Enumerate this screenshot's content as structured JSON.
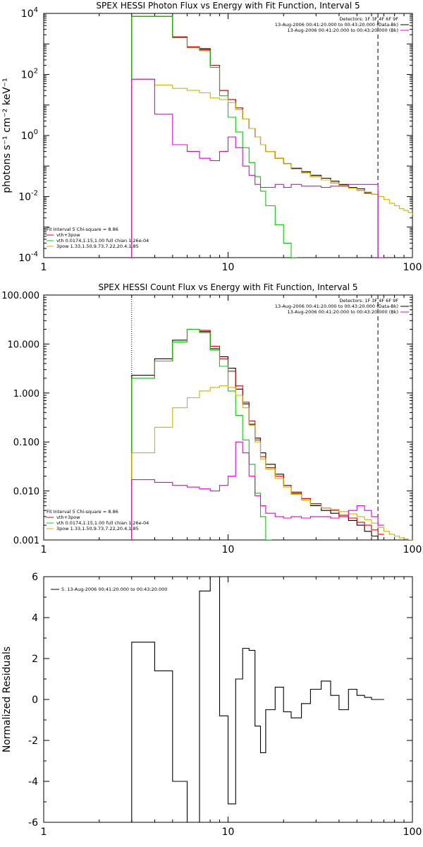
{
  "chart_data": [
    {
      "type": "line",
      "title": "SPEX HESSI Photon Flux vs Energy with Fit Function, Interval 5",
      "ylabel": "photons s⁻¹ cm⁻² keV⁻¹",
      "xlabel": "",
      "xscale": "log",
      "yscale": "log",
      "xlim": [
        1,
        100
      ],
      "ylim": [
        0.0001,
        10000
      ],
      "xtick_labels": [
        "1",
        "10",
        "100"
      ],
      "ytick_labels": [
        {
          "base": "10",
          "exp": "-4"
        },
        {
          "base": "10",
          "exp": "-2"
        },
        {
          "base": "10",
          "exp": "0"
        },
        {
          "base": "10",
          "exp": "2"
        },
        {
          "base": "10",
          "exp": "4"
        }
      ],
      "legend_top": [
        {
          "text": "Detectors: 1F 3F 4F 6F 9F",
          "color": "#000000"
        },
        {
          "text": "13-Aug-2006 00:41:20.000 to 00:43:20.000 (Data-Bk)",
          "color": "#000000"
        },
        {
          "text": "13-Aug-2006 00:41:20.000 to 00:43:20.000 (Bk)",
          "color": "#e000e0"
        }
      ],
      "legend_bottom": [
        {
          "text": "Fit Interval 5   Chi-square = 8.86",
          "color": "#000000"
        },
        {
          "text": "vth+3pow",
          "color": "#e00000"
        },
        {
          "text": "vth 0.0174,1.15,1.00  full chian 1.26e-04",
          "color": "#00d000"
        },
        {
          "text": "3pow 1.33,1.50,9.73,7.22,20.4,1.85",
          "color": "#d4b000"
        }
      ],
      "vlines": [
        {
          "x": 3.0,
          "style": "dotted",
          "color": "#000000"
        },
        {
          "x": 65.0,
          "style": "dashed",
          "color": "#000000"
        }
      ],
      "series": [
        {
          "color": "#000000",
          "x": [
            3,
            4,
            5,
            6,
            7,
            8,
            9,
            10,
            11,
            12,
            13,
            14,
            15,
            16,
            18,
            20,
            22,
            25,
            28,
            32,
            36,
            40,
            45,
            50,
            55,
            60,
            65
          ],
          "y": [
            8000,
            8000,
            1700,
            800,
            700,
            200,
            30,
            15,
            8,
            3.5,
            1.7,
            0.9,
            0.5,
            0.3,
            0.18,
            0.12,
            0.085,
            0.065,
            0.05,
            0.04,
            0.032,
            0.025,
            0.02,
            0.018,
            0.013,
            0.012,
            0.0001
          ]
        },
        {
          "color": "#e00000",
          "x": [
            3,
            4,
            5,
            6,
            7,
            8,
            9,
            10,
            11,
            12,
            13,
            14,
            15,
            16,
            18,
            20,
            22,
            25,
            28,
            32,
            36,
            40,
            45,
            50,
            55,
            60,
            65
          ],
          "y": [
            8000,
            8000,
            1700,
            800,
            650,
            200,
            30,
            15,
            8,
            3.5,
            1.7,
            0.9,
            0.5,
            0.3,
            0.18,
            0.12,
            0.08,
            0.06,
            0.045,
            0.035,
            0.028,
            0.023,
            0.019,
            0.016,
            0.014,
            0.012,
            0.01
          ]
        },
        {
          "color": "#00d000",
          "x": [
            3,
            4,
            5,
            6,
            7,
            8,
            9,
            10,
            11,
            12,
            13,
            14,
            15,
            16,
            18,
            20,
            22
          ],
          "y": [
            8000,
            8000,
            1600,
            750,
            600,
            170,
            20,
            4,
            1.3,
            0.4,
            0.13,
            0.045,
            0.015,
            0.005,
            0.0012,
            0.0003,
            0.0001
          ]
        },
        {
          "color": "#d4b000",
          "x": [
            3,
            4,
            5,
            6,
            7,
            8,
            9,
            10,
            11,
            12,
            13,
            14,
            15,
            16,
            18,
            20,
            22,
            25,
            28,
            32,
            36,
            40,
            45,
            50,
            55,
            60,
            65,
            70,
            75,
            80,
            85,
            90,
            95,
            100
          ],
          "y": [
            70,
            45,
            35,
            30,
            25,
            17,
            15,
            12,
            7,
            3.5,
            1.7,
            0.9,
            0.5,
            0.3,
            0.18,
            0.12,
            0.08,
            0.06,
            0.045,
            0.035,
            0.028,
            0.023,
            0.019,
            0.016,
            0.014,
            0.012,
            0.01,
            0.008,
            0.006,
            0.005,
            0.004,
            0.0035,
            0.003,
            0.0025
          ]
        },
        {
          "color": "#e000e0",
          "x": [
            3,
            4,
            5,
            6,
            7,
            8,
            9,
            10,
            11,
            12,
            13,
            14,
            15,
            16,
            18,
            20,
            22,
            25,
            28,
            32,
            36,
            40,
            45,
            50,
            55,
            60,
            65
          ],
          "y": [
            70,
            5,
            0.5,
            0.3,
            0.18,
            0.15,
            0.3,
            0.9,
            0.4,
            0.1,
            0.05,
            0.025,
            0.02,
            0.02,
            0.025,
            0.02,
            0.025,
            0.022,
            0.022,
            0.02,
            0.022,
            0.022,
            0.025,
            0.025,
            0.025,
            0.025,
            0.0001
          ]
        }
      ]
    },
    {
      "type": "line",
      "title": "SPEX HESSI Count Flux vs Energy with Fit Function, Interval 5",
      "ylabel": "",
      "xlabel": "",
      "xscale": "log",
      "yscale": "log",
      "xlim": [
        1,
        100
      ],
      "ylim": [
        0.001,
        100
      ],
      "xtick_labels": [
        "1",
        "10",
        "100"
      ],
      "ytick_labels": [
        "0.001",
        "0.010",
        "0.100",
        "1.000",
        "10.000",
        "100.000"
      ],
      "legend_top": [
        {
          "text": "Detectors: 1F 3F 4F 6F 9F",
          "color": "#000000"
        },
        {
          "text": "13-Aug-2006 00:41:20.000 to 00:43:20.000 (Data-Bk)",
          "color": "#000000"
        },
        {
          "text": "13-Aug-2006 00:41:20.000 to 00:43:20.000 (Bk)",
          "color": "#e000e0"
        }
      ],
      "legend_bottom": [
        {
          "text": "Fit Interval 5   Chi-square = 8.86",
          "color": "#000000"
        },
        {
          "text": "vth+3pow",
          "color": "#e00000"
        },
        {
          "text": "vth 0.0174,1.15,1.00  full chian 1.26e-04",
          "color": "#00d000"
        },
        {
          "text": "3pow 1.33,1.50,9.73,7.22,20.4,1.85",
          "color": "#d4b000"
        }
      ],
      "vlines": [
        {
          "x": 3.0,
          "style": "dotted",
          "color": "#000000"
        },
        {
          "x": 65.0,
          "style": "dashed",
          "color": "#000000"
        }
      ],
      "series": [
        {
          "color": "#000000",
          "x": [
            3,
            4,
            5,
            6,
            7,
            8,
            9,
            10,
            11,
            12,
            13,
            14,
            15,
            16,
            18,
            20,
            22,
            25,
            28,
            32,
            36,
            40,
            45,
            50,
            55,
            60,
            65
          ],
          "y": [
            2.3,
            5,
            12,
            20,
            18,
            8,
            5.5,
            3.2,
            1.2,
            0.6,
            0.23,
            0.12,
            0.06,
            0.035,
            0.022,
            0.013,
            0.009,
            0.007,
            0.005,
            0.004,
            0.0035,
            0.003,
            0.0025,
            0.002,
            0.0015,
            0.0012,
            0.001
          ]
        },
        {
          "color": "#e00000",
          "x": [
            3,
            4,
            5,
            6,
            7,
            8,
            9,
            10,
            11,
            12,
            13,
            14,
            15,
            16,
            18,
            20,
            22,
            25,
            28,
            32,
            36,
            40,
            45,
            50,
            55,
            60,
            65
          ],
          "y": [
            2.0,
            4.5,
            11,
            20,
            19,
            9,
            5,
            2.8,
            1.4,
            0.65,
            0.27,
            0.11,
            0.05,
            0.03,
            0.02,
            0.013,
            0.0095,
            0.007,
            0.0055,
            0.0045,
            0.004,
            0.0032,
            0.0028,
            0.0023,
            0.002,
            0.0016,
            0.0013
          ]
        },
        {
          "color": "#00d000",
          "x": [
            3,
            4,
            5,
            6,
            7,
            8,
            9,
            10,
            11,
            12,
            13,
            14,
            15,
            16
          ],
          "y": [
            2.0,
            4.5,
            11,
            20,
            17,
            7.5,
            3.5,
            1.1,
            0.35,
            0.11,
            0.035,
            0.009,
            0.003,
            0.001
          ]
        },
        {
          "color": "#d4b000",
          "x": [
            3,
            4,
            5,
            6,
            7,
            8,
            9,
            10,
            11,
            12,
            13,
            14,
            15,
            16,
            18,
            20,
            22,
            25,
            28,
            32,
            36,
            40,
            45,
            50,
            55,
            60,
            65,
            70,
            75,
            80,
            85,
            90,
            95,
            100
          ],
          "y": [
            0.06,
            0.2,
            0.5,
            0.8,
            1.1,
            1.3,
            1.4,
            1.3,
            0.9,
            0.5,
            0.22,
            0.1,
            0.045,
            0.028,
            0.018,
            0.012,
            0.0085,
            0.0065,
            0.0052,
            0.0045,
            0.0042,
            0.0038,
            0.0034,
            0.003,
            0.0026,
            0.0022,
            0.0018,
            0.0015,
            0.0013,
            0.0012,
            0.0011,
            0.00105,
            0.001,
            0.001
          ]
        },
        {
          "color": "#e000e0",
          "x": [
            3,
            4,
            5,
            6,
            7,
            8,
            9,
            10,
            11,
            12,
            13,
            14,
            15,
            16,
            18,
            20,
            22,
            25,
            28,
            32,
            36,
            40,
            45,
            50,
            55,
            60,
            65
          ],
          "y": [
            0.017,
            0.015,
            0.013,
            0.012,
            0.011,
            0.01,
            0.013,
            0.02,
            0.1,
            0.06,
            0.02,
            0.008,
            0.005,
            0.0035,
            0.003,
            0.0028,
            0.003,
            0.0028,
            0.003,
            0.003,
            0.0028,
            0.003,
            0.004,
            0.005,
            0.004,
            0.003,
            0.002
          ]
        }
      ]
    },
    {
      "type": "line",
      "title": "",
      "ylabel": "Normalized Residuals",
      "xlabel": "",
      "xscale": "log",
      "yscale": "linear",
      "xlim": [
        1,
        100
      ],
      "ylim": [
        -6,
        6
      ],
      "xtick_labels": [
        "1",
        "10",
        "100"
      ],
      "ytick_labels": [
        "-6",
        "-4",
        "-2",
        "0",
        "2",
        "4",
        "6"
      ],
      "legend_top": [
        {
          "text": "5. 13-Aug-2006 00:41:20.000 to 00:43:20.000",
          "color": "#000000"
        }
      ],
      "series": [
        {
          "color": "#000000",
          "x": [
            3,
            4,
            5,
            6,
            7,
            8,
            9,
            10,
            11,
            12,
            13,
            14,
            15,
            16,
            18,
            20,
            22,
            25,
            28,
            32,
            36,
            40,
            45,
            50,
            55,
            60,
            65
          ],
          "y": [
            2.8,
            1.4,
            -4,
            -6,
            5.3,
            6,
            -0.8,
            -5.1,
            1,
            2.5,
            2.4,
            -1.3,
            -2.6,
            -0.5,
            0.6,
            -0.6,
            -0.9,
            -0.2,
            0.5,
            0.9,
            0.2,
            -0.5,
            0.5,
            0.2,
            0.1,
            0.0,
            0.0
          ]
        }
      ]
    }
  ]
}
